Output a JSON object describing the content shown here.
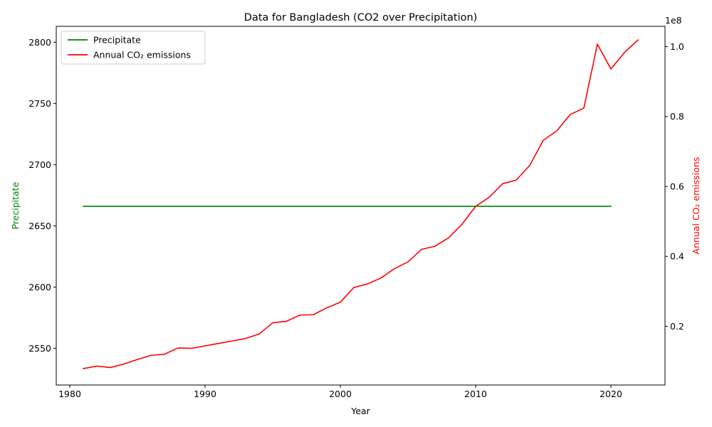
{
  "chart_data": {
    "type": "line",
    "title": "Data for Bangladesh (CO2 over Precipitation)",
    "xlabel": "Year",
    "ylabel_left": "Precipitate",
    "ylabel_right": "Annual CO₂ emissions",
    "right_axis_multiplier": "1e8",
    "xlim": [
      1979,
      2024
    ],
    "ylim_left": [
      2520,
      2813
    ],
    "ylim_right": [
      3200000,
      105800000
    ],
    "x_ticks": [
      1980,
      1990,
      2000,
      2010,
      2020
    ],
    "x_tick_labels": [
      "1980",
      "1990",
      "2000",
      "2010",
      "2020"
    ],
    "y_left_ticks": [
      2550,
      2600,
      2650,
      2700,
      2750,
      2800
    ],
    "y_left_tick_labels": [
      "2550",
      "2600",
      "2650",
      "2700",
      "2750",
      "2800"
    ],
    "y_right_ticks": [
      20000000,
      40000000,
      60000000,
      80000000,
      100000000
    ],
    "y_right_tick_labels": [
      "0.2",
      "0.4",
      "0.6",
      "0.8",
      "1.0"
    ],
    "grid": false,
    "legend_position": "top-left",
    "series": [
      {
        "name": "Precipitate",
        "color": "#008000",
        "axis": "left",
        "x": [
          1981,
          2020
        ],
        "values": [
          2666,
          2666
        ]
      },
      {
        "name": "Annual CO₂ emissions",
        "color": "#ff0000",
        "axis": "right",
        "x": [
          1981,
          1982,
          1983,
          1984,
          1985,
          1986,
          1987,
          1988,
          1989,
          1990,
          1991,
          1992,
          1993,
          1994,
          1995,
          1996,
          1997,
          1998,
          1999,
          2000,
          2001,
          2002,
          2003,
          2004,
          2005,
          2006,
          2007,
          2008,
          2009,
          2010,
          2011,
          2012,
          2013,
          2014,
          2015,
          2016,
          2017,
          2018,
          2019,
          2020,
          2021,
          2022
        ],
        "values": [
          7900000,
          8600000,
          8200000,
          9200000,
          10500000,
          11700000,
          12000000,
          13800000,
          13700000,
          14400000,
          15100000,
          15800000,
          16500000,
          17800000,
          21000000,
          21400000,
          23200000,
          23300000,
          25300000,
          26900000,
          31100000,
          32100000,
          33800000,
          36500000,
          38400000,
          42000000,
          42900000,
          45300000,
          49200000,
          54300000,
          56900000,
          60800000,
          61800000,
          66000000,
          73200000,
          75900000,
          80600000,
          82400000,
          100700000,
          93600000,
          98300000,
          101900000
        ]
      }
    ]
  }
}
